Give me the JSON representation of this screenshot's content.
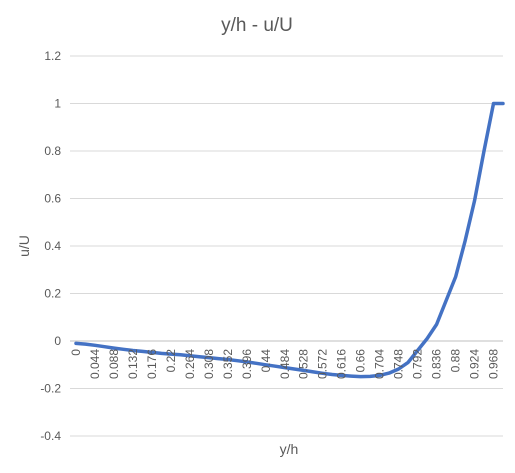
{
  "chart_data": {
    "type": "line",
    "title": "y/h - u/U",
    "xlabel": "y/h",
    "ylabel": "u/U",
    "ylim": [
      -0.4,
      1.2
    ],
    "y_ticks": [
      "-0.4",
      "-0.2",
      "0",
      "0.2",
      "0.4",
      "0.6",
      "0.8",
      "1",
      "1.2"
    ],
    "grid": true,
    "legend": "none",
    "color": "#4472c4",
    "x": [
      "0",
      "0.022",
      "0.044",
      "0.066",
      "0.088",
      "0.11",
      "0.132",
      "0.154",
      "0.176",
      "0.198",
      "0.22",
      "0.242",
      "0.264",
      "0.286",
      "0.308",
      "0.33",
      "0.352",
      "0.374",
      "0.396",
      "0.418",
      "0.44",
      "0.462",
      "0.484",
      "0.506",
      "0.528",
      "0.55",
      "0.572",
      "0.594",
      "0.616",
      "0.638",
      "0.66",
      "0.682",
      "0.704",
      "0.726",
      "0.748",
      "0.77",
      "0.792",
      "0.814",
      "0.836",
      "0.858",
      "0.88",
      "0.902",
      "0.924",
      "0.946",
      "0.968",
      "0.99"
    ],
    "x_tick_labels": [
      "0",
      "0.044",
      "0.088",
      "0.132",
      "0.176",
      "0.22",
      "0.264",
      "0.308",
      "0.352",
      "0.396",
      "0.44",
      "0.484",
      "0.528",
      "0.572",
      "0.616",
      "0.66",
      "0.704",
      "0.748",
      "0.792",
      "0.836",
      "0.88",
      "0.924",
      "0.968"
    ],
    "series": [
      {
        "values": [
          -0.01,
          -0.013,
          -0.018,
          -0.024,
          -0.03,
          -0.035,
          -0.04,
          -0.044,
          -0.048,
          -0.052,
          -0.055,
          -0.058,
          -0.062,
          -0.066,
          -0.07,
          -0.074,
          -0.078,
          -0.083,
          -0.088,
          -0.094,
          -0.1,
          -0.106,
          -0.112,
          -0.118,
          -0.124,
          -0.13,
          -0.136,
          -0.141,
          -0.145,
          -0.148,
          -0.15,
          -0.149,
          -0.145,
          -0.135,
          -0.118,
          -0.09,
          -0.04,
          0.01,
          0.07,
          0.17,
          0.27,
          0.42,
          0.59,
          0.8,
          1.0,
          1.0
        ]
      }
    ]
  }
}
